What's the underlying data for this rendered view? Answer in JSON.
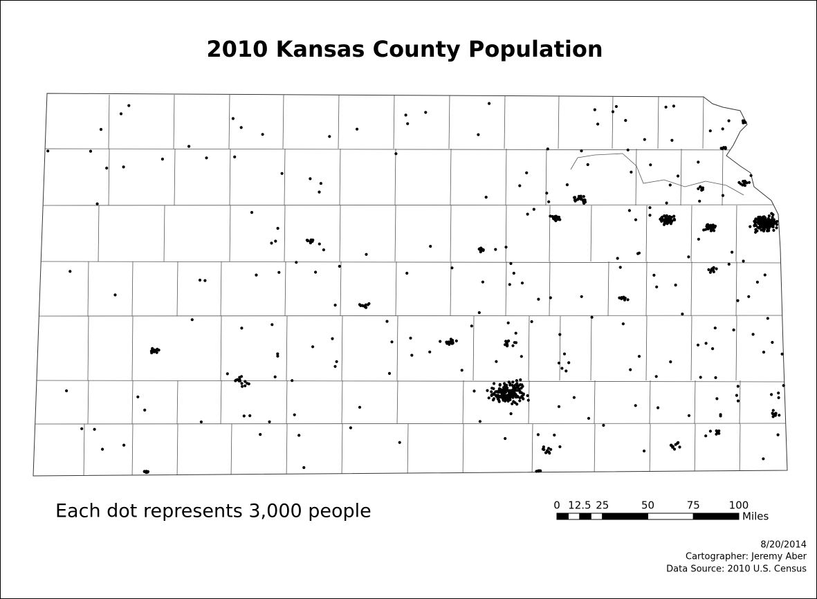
{
  "title": "2010 Kansas County Population",
  "legend": "Each dot represents 3,000 people",
  "scale_bar": {
    "ticks": [
      0,
      12.5,
      25,
      50,
      75,
      100
    ],
    "unit": "Miles"
  },
  "credits": {
    "date": "8/20/2014",
    "cartographer": "Cartographer: Jeremy Aber",
    "source": "Data Source: 2010 U.S. Census"
  }
}
